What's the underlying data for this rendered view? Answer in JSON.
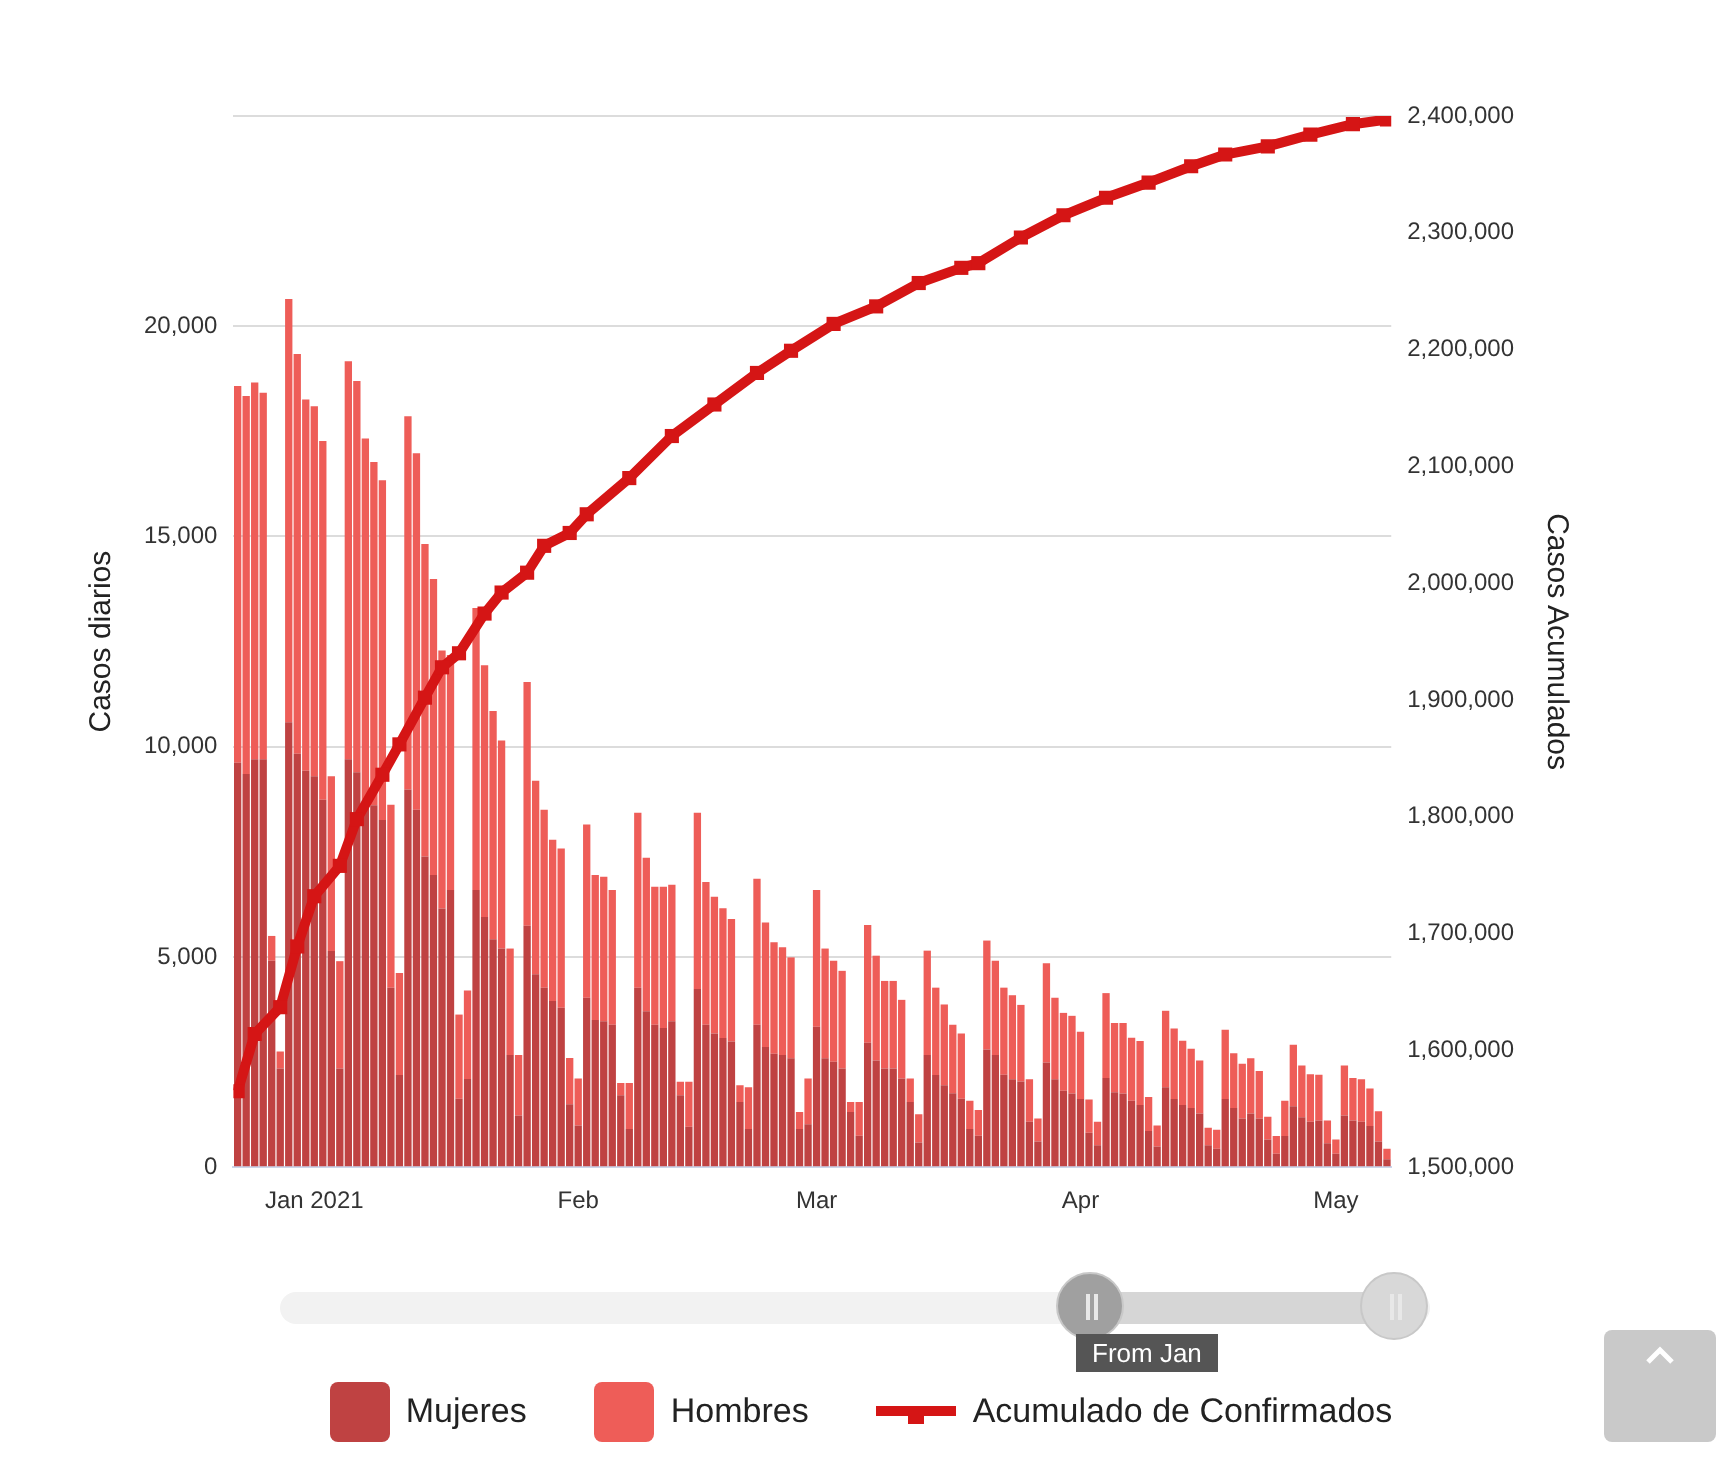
{
  "chart_data": {
    "type": "bar",
    "ylabel": "Casos diarios",
    "y2label": "Casos Acumulados",
    "stacked": true,
    "grid": "y",
    "legend": "bottom",
    "marker": "square",
    "xlim": [
      "2020-12-22T12:00",
      "2021-05-07T12:00"
    ],
    "xticks": [
      {
        "value": "2021-01-01",
        "label": "Jan 2021"
      },
      {
        "value": "2021-02-01",
        "label": "Feb"
      },
      {
        "value": "2021-03-01",
        "label": "Mar"
      },
      {
        "value": "2021-04-01",
        "label": "Apr"
      },
      {
        "value": "2021-05-01",
        "label": "May"
      }
    ],
    "ylim": [
      0,
      25000
    ],
    "yticks": [
      0,
      {
        "value": 5000,
        "label": "5,000"
      },
      {
        "value": 10000,
        "label": "10,000"
      },
      {
        "value": 15000,
        "label": "15,000"
      },
      {
        "value": 20000,
        "label": "20,000"
      },
      {
        "value": 25000,
        "label": null
      }
    ],
    "y2lim": [
      1500000,
      2400000
    ],
    "y2ticks": [
      {
        "value": 1500000,
        "label": "1,500,000"
      },
      {
        "value": 1600000,
        "label": "1,600,000"
      },
      {
        "value": 1700000,
        "label": "1,700,000"
      },
      {
        "value": 1800000,
        "label": "1,800,000"
      },
      {
        "value": 1900000,
        "label": "1,900,000"
      },
      {
        "value": 2000000,
        "label": "2,000,000"
      },
      {
        "value": 2100000,
        "label": "2,100,000"
      },
      {
        "value": 2200000,
        "label": "2,200,000"
      },
      {
        "value": 2300000,
        "label": "2,300,000"
      },
      {
        "value": 2400000,
        "label": "2,400,000"
      }
    ],
    "annotations": [
      "From Jan"
    ],
    "x": [
      "2020-12-23",
      "2020-12-24",
      "2020-12-25",
      "2020-12-26",
      "2020-12-27",
      "2020-12-28",
      "2020-12-29",
      "2020-12-30",
      "2020-12-31",
      "2021-01-01",
      "2021-01-02",
      "2021-01-03",
      "2021-01-04",
      "2021-01-05",
      "2021-01-06",
      "2021-01-07",
      "2021-01-08",
      "2021-01-09",
      "2021-01-10",
      "2021-01-11",
      "2021-01-12",
      "2021-01-13",
      "2021-01-14",
      "2021-01-15",
      "2021-01-16",
      "2021-01-17",
      "2021-01-18",
      "2021-01-19",
      "2021-01-20",
      "2021-01-21",
      "2021-01-22",
      "2021-01-23",
      "2021-01-24",
      "2021-01-25",
      "2021-01-26",
      "2021-01-27",
      "2021-01-28",
      "2021-01-29",
      "2021-01-30",
      "2021-01-31",
      "2021-02-01",
      "2021-02-02",
      "2021-02-03",
      "2021-02-04",
      "2021-02-05",
      "2021-02-06",
      "2021-02-07",
      "2021-02-08",
      "2021-02-09",
      "2021-02-10",
      "2021-02-11",
      "2021-02-12",
      "2021-02-13",
      "2021-02-14",
      "2021-02-15",
      "2021-02-16",
      "2021-02-17",
      "2021-02-18",
      "2021-02-19",
      "2021-02-20",
      "2021-02-21",
      "2021-02-22",
      "2021-02-23",
      "2021-02-24",
      "2021-02-25",
      "2021-02-26",
      "2021-02-27",
      "2021-02-28",
      "2021-03-01",
      "2021-03-02",
      "2021-03-03",
      "2021-03-04",
      "2021-03-05",
      "2021-03-06",
      "2021-03-07",
      "2021-03-08",
      "2021-03-09",
      "2021-03-10",
      "2021-03-11",
      "2021-03-12",
      "2021-03-13",
      "2021-03-14",
      "2021-03-15",
      "2021-03-16",
      "2021-03-17",
      "2021-03-18",
      "2021-03-19",
      "2021-03-20",
      "2021-03-21",
      "2021-03-22",
      "2021-03-23",
      "2021-03-24",
      "2021-03-25",
      "2021-03-26",
      "2021-03-27",
      "2021-03-28",
      "2021-03-29",
      "2021-03-30",
      "2021-03-31",
      "2021-04-01",
      "2021-04-02",
      "2021-04-03",
      "2021-04-04",
      "2021-04-05",
      "2021-04-06",
      "2021-04-07",
      "2021-04-08",
      "2021-04-09",
      "2021-04-10",
      "2021-04-11",
      "2021-04-12",
      "2021-04-13",
      "2021-04-14",
      "2021-04-15",
      "2021-04-16",
      "2021-04-17",
      "2021-04-18",
      "2021-04-19",
      "2021-04-20",
      "2021-04-21",
      "2021-04-22",
      "2021-04-23",
      "2021-04-24",
      "2021-04-25",
      "2021-04-26",
      "2021-04-27",
      "2021-04-28",
      "2021-04-29",
      "2021-04-30",
      "2021-05-01",
      "2021-05-02",
      "2021-05-03",
      "2021-05-04",
      "2021-05-05",
      "2021-05-06",
      "2021-05-07"
    ],
    "series": [
      {
        "name": "Mujeres",
        "color": "#bf4242",
        "values": [
          9620,
          9350,
          9700,
          9700,
          4910,
          2350,
          10580,
          9830,
          9430,
          9300,
          8740,
          5140,
          2350,
          9700,
          9390,
          8740,
          8610,
          8260,
          4270,
          2190,
          8980,
          8500,
          7390,
          6950,
          6150,
          6590,
          1630,
          2100,
          6590,
          5950,
          5420,
          5200,
          2670,
          1230,
          5740,
          4590,
          4270,
          3950,
          3790,
          1500,
          990,
          4030,
          3500,
          3470,
          3390,
          1710,
          910,
          4270,
          3710,
          3390,
          3310,
          3470,
          1710,
          960,
          4240,
          3390,
          3180,
          3070,
          2990,
          1550,
          910,
          3390,
          2860,
          2700,
          2670,
          2590,
          910,
          1020,
          3340,
          2590,
          2510,
          2350,
          1310,
          750,
          2960,
          2540,
          2350,
          2350,
          2110,
          1550,
          590,
          2670,
          2190,
          1950,
          1760,
          1630,
          910,
          750,
          2800,
          2670,
          2200,
          2090,
          2040,
          1080,
          610,
          2490,
          2090,
          1820,
          1750,
          1620,
          820,
          520,
          2120,
          1780,
          1750,
          1580,
          1480,
          860,
          490,
          1900,
          1620,
          1480,
          1410,
          1280,
          520,
          440,
          1620,
          1410,
          1160,
          1280,
          1160,
          660,
          320,
          740,
          1450,
          1190,
          1080,
          1110,
          570,
          320,
          1230,
          1110,
          1080,
          980,
          610,
          190
        ]
      },
      {
        "name": "Hombres",
        "color": "#ee5d58",
        "values": [
          8960,
          8990,
          8960,
          8720,
          590,
          400,
          10070,
          9510,
          8830,
          8800,
          8530,
          4160,
          2550,
          9470,
          9310,
          8590,
          8160,
          8080,
          4350,
          2430,
          8880,
          8480,
          7430,
          7040,
          6140,
          5590,
          2000,
          2100,
          6710,
          5990,
          5430,
          4950,
          2530,
          1440,
          5800,
          4600,
          4230,
          3840,
          3790,
          1100,
          1120,
          4120,
          3450,
          3440,
          3200,
          290,
          1090,
          4160,
          3650,
          3280,
          3360,
          3250,
          320,
          1070,
          4190,
          3390,
          3250,
          3090,
          2910,
          400,
          990,
          3470,
          2960,
          2650,
          2560,
          2400,
          400,
          1090,
          3250,
          2610,
          2400,
          2320,
          240,
          800,
          2800,
          2490,
          2080,
          2080,
          1870,
          560,
          670,
          2480,
          2080,
          1920,
          1630,
          1550,
          670,
          610,
          2590,
          2240,
          2070,
          2000,
          1820,
          1010,
          550,
          2360,
          1940,
          1850,
          1850,
          1600,
          790,
          560,
          2020,
          1650,
          1680,
          1500,
          1520,
          810,
          500,
          1820,
          1680,
          1530,
          1410,
          1260,
          420,
          450,
          1650,
          1300,
          1300,
          1310,
          1130,
          540,
          420,
          840,
          1460,
          1230,
          1130,
          1090,
          540,
          340,
          1190,
          1010,
          1010,
          890,
          720,
          250
        ]
      },
      {
        "name": "Acumulado de Confirmados",
        "type": "line",
        "axis": "y2",
        "color": "#d51515",
        "x": [
          "2020-12-23",
          "2020-12-25",
          "2020-12-28",
          "2020-12-30",
          "2021-01-01",
          "2021-01-04",
          "2021-01-06",
          "2021-01-09",
          "2021-01-11",
          "2021-01-14",
          "2021-01-16",
          "2021-01-18",
          "2021-01-21",
          "2021-01-23",
          "2021-01-26",
          "2021-01-28",
          "2021-01-31",
          "2021-02-02",
          "2021-02-07",
          "2021-02-12",
          "2021-02-17",
          "2021-02-22",
          "2021-02-26",
          "2021-03-03",
          "2021-03-08",
          "2021-03-13",
          "2021-03-18",
          "2021-03-20",
          "2021-03-25",
          "2021-03-30",
          "2021-04-04",
          "2021-04-09",
          "2021-04-14",
          "2021-04-18",
          "2021-04-23",
          "2021-04-28",
          "2021-05-03",
          "2021-05-07"
        ],
        "values": [
          1565000,
          1614000,
          1637000,
          1689000,
          1732000,
          1758000,
          1798000,
          1836000,
          1862000,
          1902000,
          1928000,
          1940000,
          1974000,
          1992000,
          2009000,
          2032000,
          2043000,
          2059000,
          2090000,
          2126000,
          2153000,
          2180000,
          2199000,
          2222000,
          2237000,
          2257000,
          2270000,
          2274000,
          2296000,
          2315000,
          2330000,
          2343000,
          2357000,
          2367000,
          2374000,
          2384000,
          2393000,
          2397000
        ]
      }
    ]
  }
}
